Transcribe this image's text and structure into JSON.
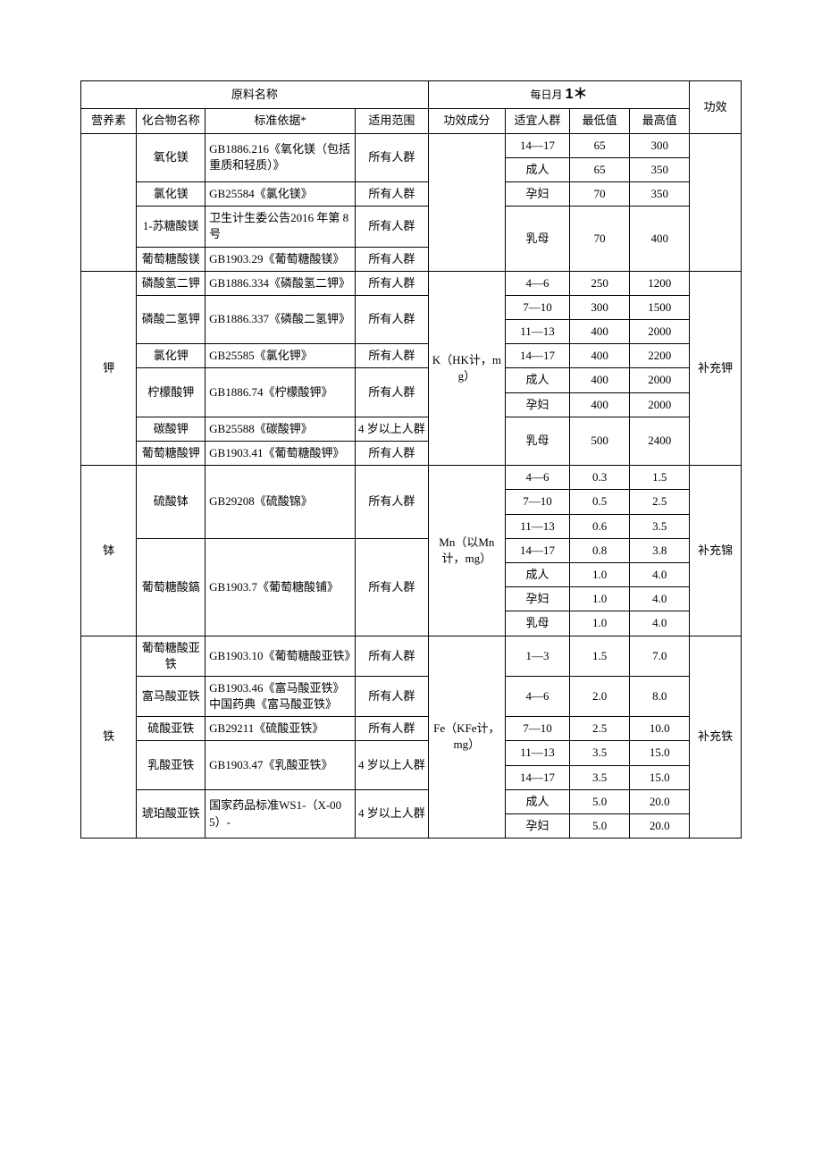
{
  "headers": {
    "rawName": "原料名称",
    "dailyPrefix": "每日月",
    "dailyMark": "1＊",
    "effect": "功效",
    "nutrient": "营养素",
    "compound": "化合物名称",
    "standard": "标准依据*",
    "scope": "适用范围",
    "component": "功效成分",
    "group": "适宜人群",
    "min": "最低值",
    "max": "最高值"
  },
  "mgGroup": {
    "rows": [
      {
        "compound": "氧化镁",
        "standard": "GB1886.216《氧化镁（包括重质和轻质）》",
        "scope": "所有人群",
        "crows": 2
      },
      {
        "compound": "氯化镁",
        "standard": "GB25584《氯化镁》",
        "scope": "所有人群",
        "crows": 2
      },
      {
        "compound": "1-苏糖酸镁",
        "standard": "卫生计生委公告2016 年第 8 号",
        "scope": "所有人群",
        "crows": 1
      },
      {
        "compound": "葡萄糖酸镁",
        "standard": "GB1903.29《葡萄糖酸镁》",
        "scope": "所有人群",
        "crows": 1
      }
    ],
    "values": [
      {
        "group": "14—17",
        "min": "65",
        "max": "300"
      },
      {
        "group": "成人",
        "min": "65",
        "max": "350"
      },
      {
        "group": "孕妇",
        "min": "70",
        "max": "350"
      },
      {
        "group": "乳母",
        "min": "70",
        "max": "400",
        "rows": 3
      }
    ]
  },
  "kGroup": {
    "nutrient": "钾",
    "component": "K（HK计，mg）",
    "effect": "补充钾",
    "rows": [
      {
        "compound": "磷酸氢二钾",
        "standard": "GB1886.334《磷酸氢二钾》",
        "scope": "所有人群"
      },
      {
        "compound": "磷酸二氢钾",
        "standard": "GB1886.337《磷酸二氢钾》",
        "scope": "所有人群",
        "crows": 2
      },
      {
        "compound": "氯化钾",
        "standard": "GB25585《氯化钾》",
        "scope": "所有人群"
      },
      {
        "compound": "柠檬酸钾",
        "standard": "GB1886.74《柠檬酸钾》",
        "scope": "所有人群",
        "crows": 2
      },
      {
        "compound": "碳酸钾",
        "standard": "GB25588《碳酸钾》",
        "scope": "4 岁以上人群"
      },
      {
        "compound": "葡萄糖酸钾",
        "standard": "GB1903.41《葡萄糖酸钾》",
        "scope": "所有人群"
      }
    ],
    "values": [
      {
        "group": "4—6",
        "min": "250",
        "max": "1200"
      },
      {
        "group": "7—10",
        "min": "300",
        "max": "1500"
      },
      {
        "group": "11—13",
        "min": "400",
        "max": "2000"
      },
      {
        "group": "14—17",
        "min": "400",
        "max": "2200"
      },
      {
        "group": "成人",
        "min": "400",
        "max": "2000"
      },
      {
        "group": "孕妇",
        "min": "400",
        "max": "2000"
      },
      {
        "group": "乳母",
        "min": "500",
        "max": "2400",
        "rows": 2
      }
    ]
  },
  "mnGroup": {
    "nutrient": "钵",
    "component": "Mn（以Mn 计，mg）",
    "effect": "补充锦",
    "rows": [
      {
        "compound": "硫酸钵",
        "standard": "GB29208《硫酸锦》",
        "scope": "所有人群",
        "crows": 3
      },
      {
        "compound": "葡萄糖酸鎬",
        "standard": "GB1903.7《葡萄糖酸铺》",
        "scope": "所有人群",
        "crows": 4
      }
    ],
    "values": [
      {
        "group": "4—6",
        "min": "0.3",
        "max": "1.5"
      },
      {
        "group": "7—10",
        "min": "0.5",
        "max": "2.5"
      },
      {
        "group": "11—13",
        "min": "0.6",
        "max": "3.5"
      },
      {
        "group": "14—17",
        "min": "0.8",
        "max": "3.8"
      },
      {
        "group": "成人",
        "min": "1.0",
        "max": "4.0"
      },
      {
        "group": "孕妇",
        "min": "1.0",
        "max": "4.0"
      },
      {
        "group": "乳母",
        "min": "1.0",
        "max": "4.0"
      }
    ]
  },
  "feGroup": {
    "nutrient": "铁",
    "component": "Fe（KFe计，mg）",
    "effect": "补充铁",
    "rows": [
      {
        "compound": "葡萄糖酸亚铁",
        "standard": "GB1903.10《葡萄糖酸亚铁》",
        "scope": "所有人群",
        "crows": 1
      },
      {
        "compound": "富马酸亚铁",
        "standard": "GB1903.46《富马酸亚铁》中国药典《富马酸亚铁》",
        "scope": "所有人群",
        "crows": 1
      },
      {
        "compound": "硫酸亚铁",
        "standard": "GB29211《硫酸亚铁》",
        "scope": "所有人群",
        "crows": 1
      },
      {
        "compound": "乳酸亚铁",
        "standard": "GB1903.47《乳酸亚铁》",
        "scope": "4 岁以上人群",
        "crows": 2
      },
      {
        "compound": "琥珀酸亚铁",
        "standard": "国家药品标准WS1-（X-005）-",
        "scope": "4 岁以上人群",
        "crows": 2
      }
    ],
    "values": [
      {
        "group": "1—3",
        "min": "1.5",
        "max": "7.0"
      },
      {
        "group": "4—6",
        "min": "2.0",
        "max": "8.0"
      },
      {
        "group": "7—10",
        "min": "2.5",
        "max": "10.0"
      },
      {
        "group": "11—13",
        "min": "3.5",
        "max": "15.0"
      },
      {
        "group": "14—17",
        "min": "3.5",
        "max": "15.0"
      },
      {
        "group": "成人",
        "min": "5.0",
        "max": "20.0"
      },
      {
        "group": "孕妇",
        "min": "5.0",
        "max": "20.0"
      }
    ]
  }
}
